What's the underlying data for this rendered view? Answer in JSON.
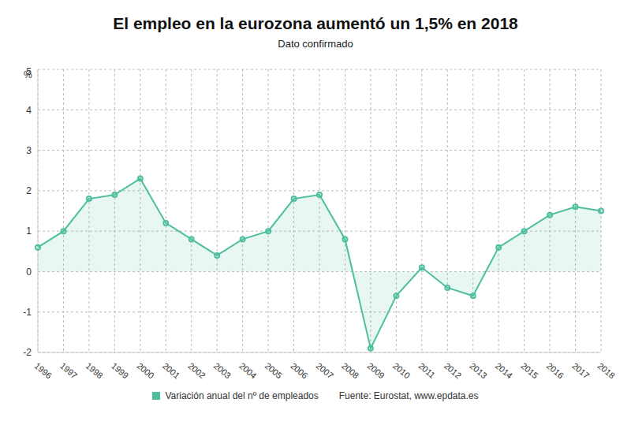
{
  "chart_data": {
    "type": "area",
    "title": "El empleo en la eurozona aumentó un 1,5% en 2018",
    "subtitle": "Dato confirmado",
    "y_label": "%",
    "source": "Fuente: Eurostat, www.epdata.es",
    "categories": [
      "1996",
      "1997",
      "1998",
      "1999",
      "2000",
      "2001",
      "2002",
      "2003",
      "2004",
      "2005",
      "2006",
      "2007",
      "2008",
      "2009",
      "2010",
      "2011",
      "2012",
      "2013",
      "2014",
      "2015",
      "2016",
      "2017",
      "2018"
    ],
    "series": [
      {
        "name": "Variación anual del nº de empleados",
        "color": "#4dbf9f",
        "values": [
          0.6,
          1.0,
          1.8,
          1.9,
          2.3,
          1.2,
          0.8,
          0.4,
          0.8,
          1.0,
          1.8,
          1.9,
          0.8,
          -1.9,
          -0.6,
          0.1,
          -0.4,
          -0.6,
          0.6,
          1.0,
          1.4,
          1.6,
          1.5
        ],
        "marker": "circle"
      }
    ],
    "ylim": [
      -2,
      5
    ],
    "yticks": [
      -2,
      -1,
      0,
      1,
      2,
      3,
      4,
      5
    ],
    "grid": true,
    "legend": "bottom"
  }
}
